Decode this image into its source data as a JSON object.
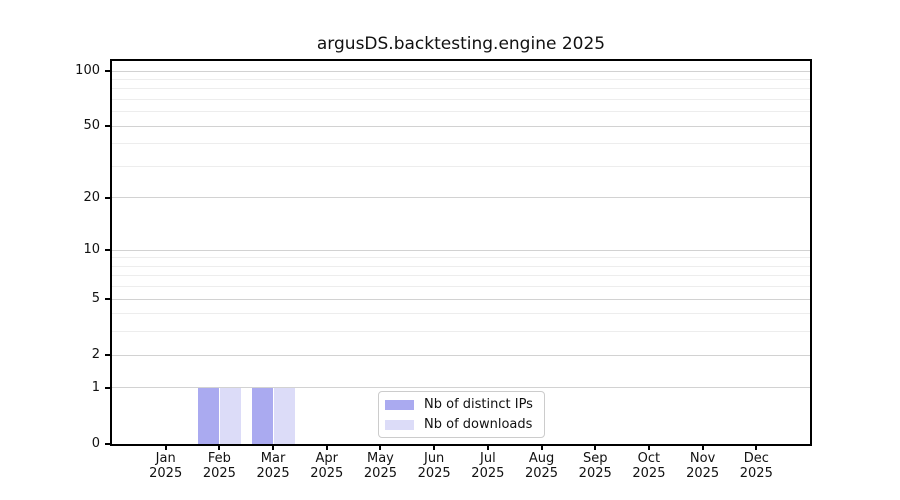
{
  "figure": {
    "title": "argusDS.backtesting.engine 2025"
  },
  "chart_data": {
    "type": "bar",
    "title": "argusDS.backtesting.engine 2025",
    "categories": [
      "Jan 2025",
      "Feb 2025",
      "Mar 2025",
      "Apr 2025",
      "May 2025",
      "Jun 2025",
      "Jul 2025",
      "Aug 2025",
      "Sep 2025",
      "Oct 2025",
      "Nov 2025",
      "Dec 2025"
    ],
    "series": [
      {
        "name": "Nb of distinct IPs",
        "color": "#aaaaf0",
        "values": [
          0,
          1,
          1,
          0,
          0,
          0,
          0,
          0,
          0,
          0,
          0,
          0
        ]
      },
      {
        "name": "Nb of downloads",
        "color": "#dcdcf8",
        "values": [
          0,
          1,
          1,
          0,
          0,
          0,
          0,
          0,
          0,
          0,
          0,
          0
        ]
      }
    ],
    "xlabel": "",
    "ylabel": "",
    "yscale": "log1p",
    "ylim": [
      0,
      100
    ],
    "yticks": [
      0,
      1,
      2,
      5,
      10,
      20,
      50,
      100
    ],
    "yminorticks": [
      3,
      4,
      6,
      7,
      8,
      9,
      30,
      40,
      60,
      70,
      80,
      90
    ],
    "grid": "horizontal, major and minor",
    "legend_position": "lower center"
  },
  "colors": {
    "major_grid": "#d2d2d2",
    "minor_grid": "#ededed",
    "spine": "#000000",
    "legend_border": "#cccccc",
    "background": "#ffffff",
    "text": "#111111"
  }
}
